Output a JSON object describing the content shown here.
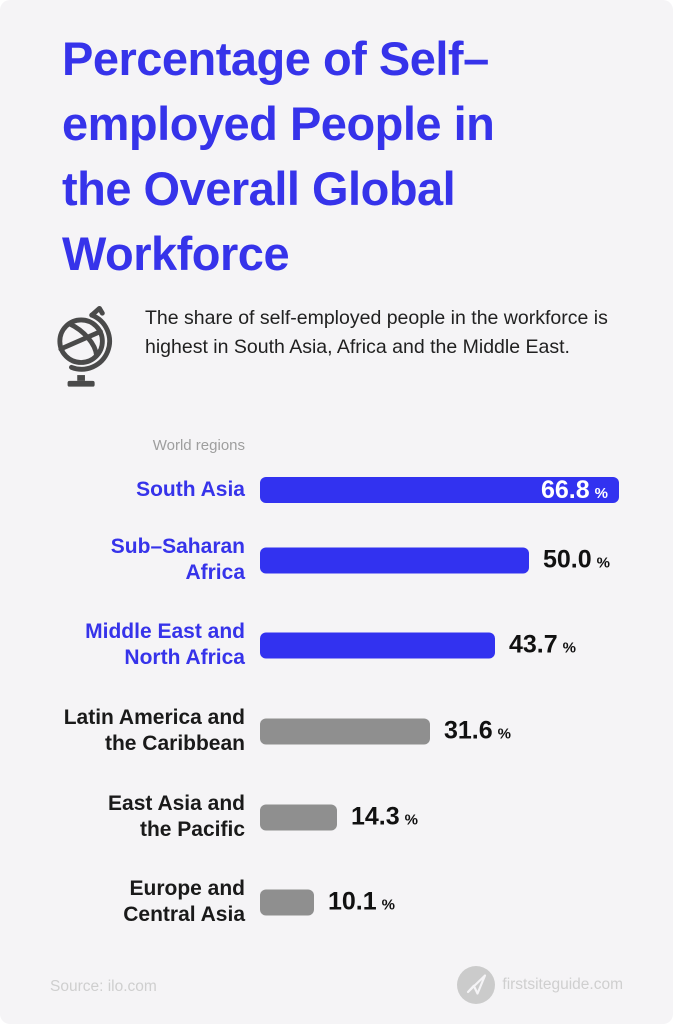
{
  "page": {
    "background": "#F5F4F6"
  },
  "title": {
    "text": "Percentage of Self–employed People in the Overall Global Workforce",
    "lines": [
      "Percentage of Self–",
      "employed People in",
      "the Overall Global",
      "Workforce"
    ],
    "color": "#3633EA"
  },
  "subtitle": {
    "icon": "globe-icon",
    "text": "The share of self-employed people in the workforce is highest in South Asia, Africa and the Middle East."
  },
  "chart_data": {
    "type": "bar",
    "orientation": "horizontal",
    "title": "Percentage of Self–employed People in the Overall Global Workforce",
    "axis_label": "World regions",
    "unit": "%",
    "xlim": [
      0,
      70
    ],
    "grid": false,
    "legend": false,
    "categories": [
      "South Asia",
      "Sub–Saharan Africa",
      "Middle East and North Africa",
      "Latin America and the Caribbean",
      "East Asia and the Pacific",
      "Europe and Central Asia"
    ],
    "values": [
      66.8,
      50.0,
      43.7,
      31.6,
      14.3,
      10.1
    ],
    "rows": [
      {
        "lines": [
          "South Asia"
        ],
        "value": 66.8,
        "display": "66.8",
        "highlight": true,
        "value_inside": true
      },
      {
        "lines": [
          "Sub–Saharan",
          "Africa"
        ],
        "value": 50.0,
        "display": "50.0",
        "highlight": true,
        "value_inside": false
      },
      {
        "lines": [
          "Middle East and",
          "North Africa"
        ],
        "value": 43.7,
        "display": "43.7",
        "highlight": true,
        "value_inside": false
      },
      {
        "lines": [
          "Latin America and",
          "the Caribbean"
        ],
        "value": 31.6,
        "display": "31.6",
        "highlight": false,
        "value_inside": false
      },
      {
        "lines": [
          "East Asia and",
          "the Pacific"
        ],
        "value": 14.3,
        "display": "14.3",
        "highlight": false,
        "value_inside": false
      },
      {
        "lines": [
          "Europe and",
          "Central Asia"
        ],
        "value": 10.1,
        "display": "10.1",
        "highlight": false,
        "value_inside": false
      }
    ],
    "colors": {
      "highlight_bar": "#3232F0",
      "muted_bar": "#8F8F8F",
      "highlight_label": "#3633EA",
      "muted_label": "#1A1A1A",
      "value_text": "#111111",
      "value_text_inside": "#FFFFFF"
    }
  },
  "footer": {
    "source": "Source: ilo.com",
    "brand": "firstsiteguide.com",
    "brand_icon": "paper-plane-icon"
  }
}
